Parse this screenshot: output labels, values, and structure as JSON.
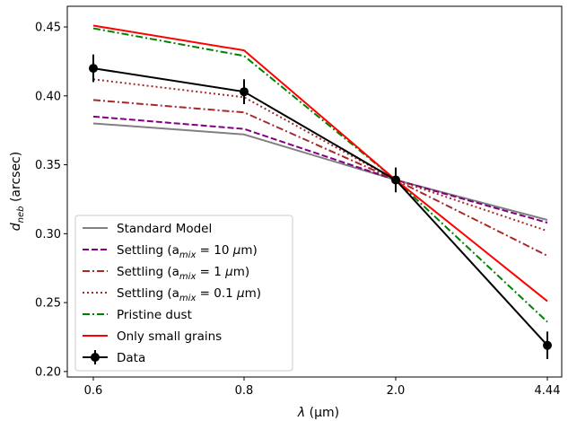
{
  "chart_data": {
    "type": "line",
    "categories": [
      "0.6",
      "0.8",
      "2.0",
      "4.44"
    ],
    "xlabel_symbol": "λ",
    "xlabel_unit": " (μm)",
    "ylabel_base": "d",
    "ylabel_sub": "neb",
    "ylabel_unit": " (arcsec)",
    "ylim": [
      0.196,
      0.465
    ],
    "yticks": [
      0.2,
      0.25,
      0.3,
      0.35,
      0.4,
      0.45
    ],
    "ytick_labels": [
      "0.20",
      "0.25",
      "0.30",
      "0.35",
      "0.40",
      "0.45"
    ],
    "grid": false,
    "legend_position": "lower-left",
    "series": [
      {
        "name": "Standard Model",
        "color": "#808080",
        "dash": "solid",
        "values": [
          0.38,
          0.372,
          0.339,
          0.31
        ],
        "label_parts": [
          "Standard Model"
        ]
      },
      {
        "name": "Settling (a_mix = 10 μm)",
        "color": "#800080",
        "dash": "dashed",
        "values": [
          0.385,
          0.376,
          0.339,
          0.308
        ],
        "label_parts": [
          "Settling (a",
          "mix",
          " = 10 ",
          "μ",
          "m)"
        ]
      },
      {
        "name": "Settling (a_mix = 1 μm)",
        "color": "#a52a2a",
        "dash": "dashdot",
        "values": [
          0.397,
          0.388,
          0.339,
          0.284
        ],
        "label_parts": [
          "Settling (a",
          "mix",
          " = 1 ",
          "μ",
          "m)"
        ]
      },
      {
        "name": "Settling (a_mix = 0.1 μm)",
        "color": "#a52a2a",
        "dash": "dotted",
        "values": [
          0.412,
          0.399,
          0.339,
          0.302
        ],
        "label_parts": [
          "Settling (a",
          "mix",
          " = 0.1 ",
          "μ",
          "m)"
        ]
      },
      {
        "name": "Pristine dust",
        "color": "#008000",
        "dash": "dashdot",
        "values": [
          0.449,
          0.429,
          0.339,
          0.236
        ],
        "label_parts": [
          "Pristine dust"
        ]
      },
      {
        "name": "Only small grains",
        "color": "#ff0000",
        "dash": "solid",
        "values": [
          0.451,
          0.433,
          0.339,
          0.251
        ],
        "label_parts": [
          "Only small grains"
        ]
      },
      {
        "name": "Data",
        "color": "#000000",
        "dash": "solid",
        "marker": "circle",
        "values": [
          0.42,
          0.403,
          0.339,
          0.219
        ],
        "errors": [
          0.01,
          0.009,
          0.009,
          0.01
        ],
        "label_parts": [
          "Data"
        ]
      }
    ]
  }
}
